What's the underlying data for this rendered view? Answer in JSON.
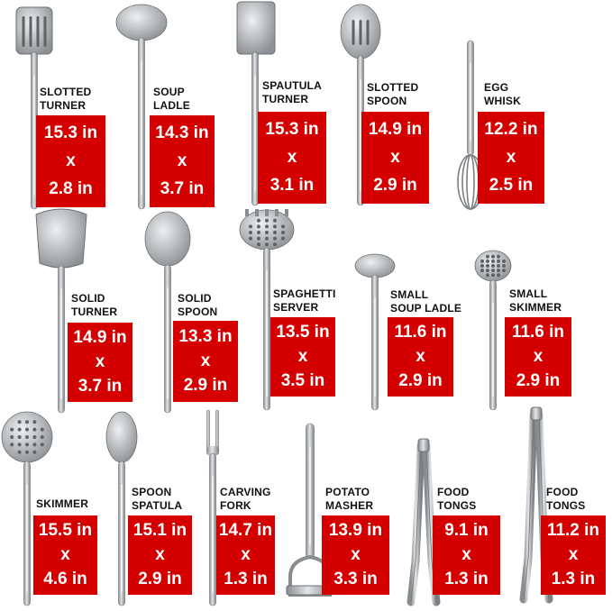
{
  "items": [
    {
      "name": [
        "SLOTTED",
        "TURNER"
      ],
      "size": [
        "15.3 in",
        "x",
        "2.8 in"
      ]
    },
    {
      "name": [
        "SOUP",
        "LADLE"
      ],
      "size": [
        "14.3 in",
        "x",
        "3.7 in"
      ]
    },
    {
      "name": [
        "SPAUTULA",
        "TURNER"
      ],
      "size": [
        "15.3 in",
        "x",
        "3.1 in"
      ]
    },
    {
      "name": [
        "SLOTTED",
        "SPOON"
      ],
      "size": [
        "14.9 in",
        "x",
        "2.9 in"
      ]
    },
    {
      "name": [
        "EGG",
        "WHISK"
      ],
      "size": [
        "12.2 in",
        "x",
        "2.5 in"
      ]
    },
    {
      "name": [
        "SOLID",
        "TURNER"
      ],
      "size": [
        "14.9 in",
        "x",
        "3.7 in"
      ]
    },
    {
      "name": [
        "SOLID",
        "SPOON"
      ],
      "size": [
        "13.3 in",
        "x",
        "2.9 in"
      ]
    },
    {
      "name": [
        "SPAGHETTI",
        "SERVER"
      ],
      "size": [
        "13.5 in",
        "x",
        "3.5 in"
      ]
    },
    {
      "name": [
        "SMALL",
        "SOUP LADLE"
      ],
      "size": [
        "11.6 in",
        "x",
        "2.9 in"
      ]
    },
    {
      "name": [
        "SMALL",
        "SKIMMER"
      ],
      "size": [
        "11.6 in",
        "x",
        "2.9 in"
      ]
    },
    {
      "name": [
        "SKIMMER"
      ],
      "size": [
        "15.5 in",
        "x",
        "4.6 in"
      ]
    },
    {
      "name": [
        "SPOON",
        "SPATULA"
      ],
      "size": [
        "15.1 in",
        "x",
        "2.9 in"
      ]
    },
    {
      "name": [
        "CARVING",
        "FORK"
      ],
      "size": [
        "14.7 in",
        "x",
        "1.3 in"
      ]
    },
    {
      "name": [
        "POTATO",
        "MASHER"
      ],
      "size": [
        "13.9 in",
        "x",
        "3.3 in"
      ]
    },
    {
      "name": [
        "FOOD",
        "TONGS"
      ],
      "size": [
        "9.1 in",
        "x",
        "1.3 in"
      ]
    },
    {
      "name": [
        "FOOD",
        "TONGS"
      ],
      "size": [
        "11.2 in",
        "x",
        "1.3 in"
      ]
    }
  ]
}
